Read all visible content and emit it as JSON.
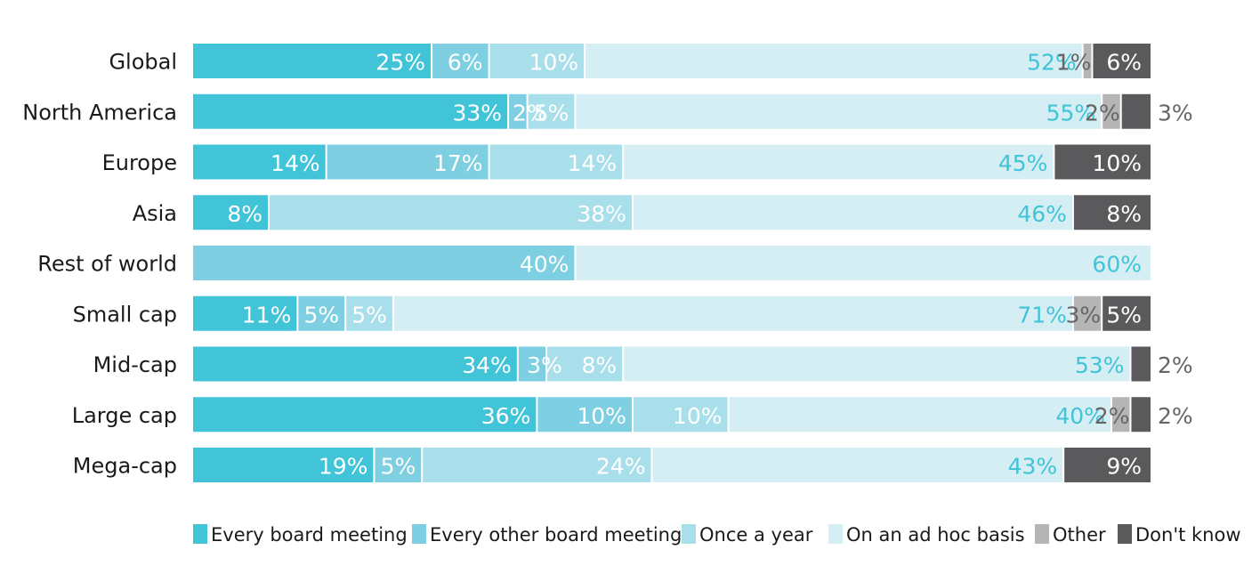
{
  "chart_data": {
    "type": "bar",
    "orientation": "horizontal",
    "stacked": true,
    "xlim": [
      0,
      100
    ],
    "grid": false,
    "legend_position": "bottom",
    "categories": [
      "Global",
      "North America",
      "Europe",
      "Asia",
      "Rest of world",
      "Small cap",
      "Mid-cap",
      "Large cap",
      "Mega-cap"
    ],
    "series": [
      {
        "name": "Every board meeting",
        "color": "#41c3d8",
        "values": [
          25,
          33,
          14,
          8,
          0,
          11,
          34,
          36,
          19
        ]
      },
      {
        "name": "Every other board meeting",
        "color": "#7ecfe1",
        "values": [
          6,
          2,
          17,
          0,
          40,
          5,
          3,
          10,
          5
        ]
      },
      {
        "name": "Once a year",
        "color": "#a9dfea",
        "values": [
          10,
          5,
          14,
          38,
          0,
          5,
          8,
          10,
          24
        ]
      },
      {
        "name": "On an ad hoc basis",
        "color": "#d4eef4",
        "values": [
          52,
          55,
          45,
          46,
          60,
          71,
          53,
          40,
          43
        ]
      },
      {
        "name": "Other",
        "color": "#b5b5b5",
        "values": [
          1,
          2,
          0,
          0,
          0,
          3,
          0,
          2,
          0
        ]
      },
      {
        "name": "Don't know",
        "color": "#5a5a5c",
        "values": [
          6,
          3,
          10,
          8,
          0,
          5,
          2,
          2,
          9
        ]
      }
    ],
    "label_suffix": "%"
  }
}
